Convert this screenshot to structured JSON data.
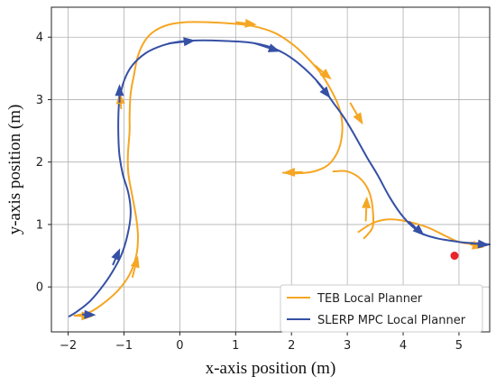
{
  "chart_data": {
    "type": "line",
    "title": "",
    "xlabel": "x-axis position (m)",
    "ylabel": "y-axis position (m)",
    "xlim": [
      -2.3,
      5.55
    ],
    "ylim": [
      -0.72,
      4.48
    ],
    "x_ticks": [
      -2,
      -1,
      0,
      1,
      2,
      3,
      4,
      5
    ],
    "y_ticks": [
      0,
      1,
      2,
      3,
      4
    ],
    "grid": true,
    "legend_position": "bottom-right",
    "series": [
      {
        "name": "TEB Local Planner",
        "color": "#F5A623",
        "segments": [
          [
            [
              -1.88,
              -0.46
            ],
            [
              -1.6,
              -0.4
            ],
            [
              -1.35,
              -0.25
            ],
            [
              -1.1,
              -0.05
            ],
            [
              -0.9,
              0.2
            ],
            [
              -0.78,
              0.5
            ],
            [
              -0.75,
              0.8
            ],
            [
              -0.78,
              1.1
            ],
            [
              -0.85,
              1.45
            ],
            [
              -0.92,
              1.8
            ],
            [
              -0.93,
              2.1
            ],
            [
              -0.9,
              2.5
            ],
            [
              -0.9,
              2.75
            ],
            [
              -0.88,
              3.1
            ],
            [
              -0.82,
              3.4
            ],
            [
              -0.75,
              3.7
            ],
            [
              -0.62,
              3.95
            ],
            [
              -0.45,
              4.1
            ],
            [
              -0.2,
              4.2
            ],
            [
              0.1,
              4.24
            ],
            [
              0.5,
              4.24
            ],
            [
              0.9,
              4.22
            ],
            [
              1.3,
              4.18
            ],
            [
              1.7,
              4.07
            ],
            [
              2.0,
              3.9
            ],
            [
              2.25,
              3.7
            ],
            [
              2.5,
              3.45
            ],
            [
              2.68,
              3.2
            ],
            [
              2.82,
              2.95
            ],
            [
              2.9,
              2.7
            ],
            [
              2.9,
              2.4
            ],
            [
              2.82,
              2.15
            ],
            [
              2.65,
              1.95
            ],
            [
              2.4,
              1.85
            ],
            [
              2.1,
              1.82
            ],
            [
              1.85,
              1.83
            ]
          ],
          [
            [
              2.75,
              1.85
            ],
            [
              3.0,
              1.85
            ],
            [
              3.25,
              1.72
            ],
            [
              3.4,
              1.5
            ],
            [
              3.46,
              1.2
            ],
            [
              3.45,
              0.95
            ],
            [
              3.3,
              0.78
            ]
          ],
          [
            [
              3.2,
              0.88
            ],
            [
              3.45,
              1.02
            ],
            [
              3.7,
              1.08
            ],
            [
              3.95,
              1.07
            ],
            [
              4.2,
              1.02
            ],
            [
              4.45,
              0.95
            ],
            [
              4.75,
              0.82
            ],
            [
              5.0,
              0.72
            ],
            [
              5.3,
              0.68
            ],
            [
              5.5,
              0.67
            ]
          ]
        ]
      },
      {
        "name": "SLERP MPC Local Planner",
        "color": "#3550A5",
        "segments": [
          [
            [
              -1.98,
              -0.47
            ],
            [
              -1.85,
              -0.4
            ],
            [
              -1.6,
              -0.22
            ],
            [
              -1.35,
              0.05
            ],
            [
              -1.17,
              0.3
            ],
            [
              -1.03,
              0.55
            ],
            [
              -0.92,
              0.9
            ],
            [
              -0.88,
              1.2
            ],
            [
              -0.92,
              1.5
            ],
            [
              -1.02,
              1.8
            ],
            [
              -1.08,
              2.1
            ],
            [
              -1.1,
              2.4
            ],
            [
              -1.1,
              2.75
            ],
            [
              -1.08,
              3.0
            ],
            [
              -1.0,
              3.3
            ],
            [
              -0.85,
              3.55
            ],
            [
              -0.6,
              3.75
            ],
            [
              -0.3,
              3.87
            ],
            [
              0.0,
              3.93
            ],
            [
              0.4,
              3.95
            ],
            [
              0.8,
              3.94
            ],
            [
              1.2,
              3.92
            ],
            [
              1.55,
              3.86
            ],
            [
              1.85,
              3.75
            ],
            [
              2.1,
              3.6
            ],
            [
              2.35,
              3.4
            ],
            [
              2.55,
              3.2
            ],
            [
              2.75,
              2.95
            ],
            [
              2.95,
              2.7
            ],
            [
              3.15,
              2.4
            ],
            [
              3.35,
              2.08
            ],
            [
              3.55,
              1.78
            ],
            [
              3.75,
              1.45
            ],
            [
              3.95,
              1.18
            ],
            [
              4.15,
              0.98
            ],
            [
              4.35,
              0.85
            ],
            [
              4.6,
              0.78
            ],
            [
              4.85,
              0.74
            ],
            [
              5.1,
              0.71
            ],
            [
              5.35,
              0.7
            ],
            [
              5.55,
              0.68
            ]
          ]
        ]
      }
    ],
    "arrows": [
      {
        "series": 0,
        "points": [
          [
            -0.85,
            0.15
          ],
          [
            -0.75,
            0.5
          ]
        ]
      },
      {
        "series": 0,
        "points": [
          [
            -1.05,
            2.85
          ],
          [
            -1.08,
            3.12
          ]
        ]
      },
      {
        "series": 0,
        "points": [
          [
            1.0,
            4.24
          ],
          [
            1.38,
            4.2
          ]
        ]
      },
      {
        "series": 0,
        "points": [
          [
            2.42,
            3.55
          ],
          [
            2.72,
            3.32
          ]
        ]
      },
      {
        "series": 0,
        "points": [
          [
            3.05,
            2.95
          ],
          [
            3.28,
            2.6
          ]
        ]
      },
      {
        "series": 0,
        "points": [
          [
            2.2,
            1.84
          ],
          [
            1.85,
            1.83
          ]
        ]
      },
      {
        "series": 0,
        "points": [
          [
            3.33,
            1.05
          ],
          [
            3.35,
            1.45
          ]
        ]
      },
      {
        "series": 0,
        "points": [
          [
            5.2,
            0.68
          ],
          [
            5.45,
            0.63
          ]
        ]
      },
      {
        "series": 0,
        "points": [
          [
            -1.9,
            -0.46
          ],
          [
            -1.55,
            -0.47
          ]
        ]
      },
      {
        "series": 1,
        "points": [
          [
            -1.2,
            0.35
          ],
          [
            -1.07,
            0.62
          ]
        ]
      },
      {
        "series": 1,
        "points": [
          [
            -1.08,
            2.95
          ],
          [
            -1.08,
            3.25
          ]
        ]
      },
      {
        "series": 1,
        "points": [
          [
            -0.2,
            3.9
          ],
          [
            0.28,
            3.95
          ]
        ]
      },
      {
        "series": 1,
        "points": [
          [
            1.35,
            3.9
          ],
          [
            1.8,
            3.77
          ]
        ]
      },
      {
        "series": 1,
        "points": [
          [
            2.45,
            3.3
          ],
          [
            2.7,
            3.02
          ]
        ]
      },
      {
        "series": 1,
        "points": [
          [
            4.1,
            1.05
          ],
          [
            4.38,
            0.82
          ]
        ]
      },
      {
        "series": 1,
        "points": [
          [
            5.2,
            0.7
          ],
          [
            5.55,
            0.67
          ]
        ]
      },
      {
        "series": 1,
        "points": [
          [
            -1.75,
            -0.44
          ],
          [
            -1.5,
            -0.45
          ]
        ]
      }
    ],
    "marker": {
      "x": 4.92,
      "y": 0.5,
      "color": "#E8242A"
    }
  }
}
